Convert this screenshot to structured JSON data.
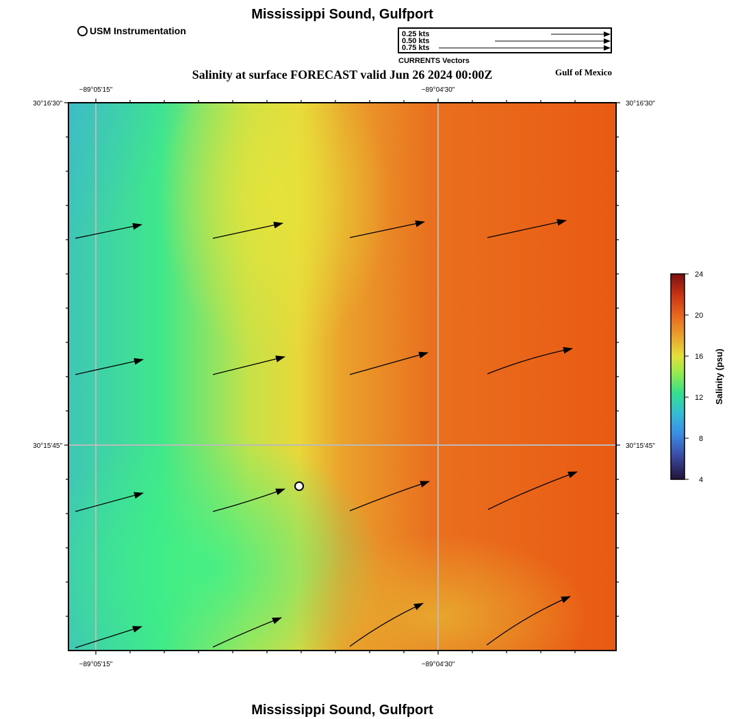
{
  "header": {
    "title": "Mississippi Sound, Gulfport",
    "subtitle": "Salinity at surface FORECAST valid Jun 26 2024 00:00Z",
    "region": "Gulf of Mexico",
    "footer_title": "Mississippi Sound, Gulfport"
  },
  "legend": {
    "station_label": "USM Instrumentation",
    "vector_scale": [
      {
        "label": "0.25 kts",
        "speed": 0.25
      },
      {
        "label": "0.50 kts",
        "speed": 0.5
      },
      {
        "label": "0.75 kts",
        "speed": 0.75
      }
    ],
    "vector_caption": "CURRENTS Vectors"
  },
  "map": {
    "lon_labels": [
      "−89°05'15\"",
      "−89°04'30\""
    ],
    "lat_labels": [
      "30°16'30\"",
      "30°15'45\""
    ],
    "station": {
      "name": "USM Instrumentation"
    }
  },
  "colorbar": {
    "title": "Salinity (psu)",
    "min": 4,
    "max": 24,
    "ticks": [
      "24",
      "20",
      "16",
      "12",
      "8",
      "4"
    ]
  },
  "colors": {
    "frame": "#000000",
    "grid": "#bbbbbb"
  }
}
